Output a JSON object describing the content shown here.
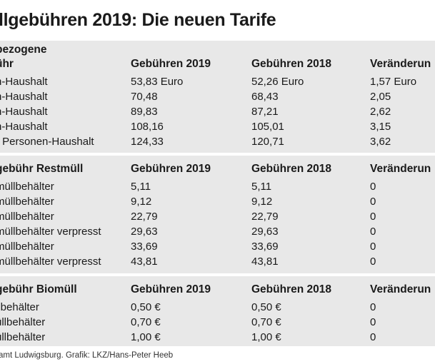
{
  "title": "llgebühren 2019: Die neuen Tarife",
  "section1": {
    "label_line1": "bezogene",
    "label_line2": "ühr",
    "col1": "Gebühren 2019",
    "col2": "Gebühren 2018",
    "col3": "Veränderun",
    "rows": [
      [
        "n-Haushalt",
        "53,83 Euro",
        "52,26  Euro",
        "1,57 Euro"
      ],
      [
        "n-Haushalt",
        "70,48",
        "68,43",
        "2,05"
      ],
      [
        "n-Haushalt",
        "89,83",
        "87,21",
        "2,62"
      ],
      [
        "n-Haushalt",
        "108,16",
        "105,01",
        "3,15"
      ],
      [
        "r Personen-Haushalt",
        "124,33",
        "120,71",
        "3,62"
      ]
    ]
  },
  "section2": {
    "label": "gebühr Restmüll",
    "col1": "Gebühren 2019",
    "col2": "Gebühren 2018",
    "col3": "Veränderun",
    "rows": [
      [
        "müllbehälter",
        "5,11",
        "5,11",
        "0"
      ],
      [
        "müllbehälter",
        "9,12",
        "9,12",
        "0"
      ],
      [
        "müllbehälter",
        "22,79",
        "22,79",
        "0"
      ],
      [
        "müllbehälter verpresst",
        "29,63",
        "29,63",
        "0"
      ],
      [
        "müllbehälter",
        "33,69",
        "33,69",
        "0"
      ],
      [
        "müllbehälter verpresst",
        "43,81",
        "43,81",
        "0"
      ]
    ]
  },
  "section3": {
    "label": "gebühr Biomüll",
    "col1": "Gebühren 2019",
    "col2": "Gebühren 2018",
    "col3": "Veränderun",
    "rows": [
      [
        "llbehälter",
        "0,50 €",
        "0,50 €",
        "0"
      ],
      [
        "üllbehälter",
        "0,70 €",
        "0,70 €",
        "0"
      ],
      [
        "üllbehälter",
        "1,00 €",
        "1,00 €",
        "0"
      ]
    ]
  },
  "credit": "amt Ludwigsburg. Grafik: LKZ/Hans-Peter Heeb"
}
